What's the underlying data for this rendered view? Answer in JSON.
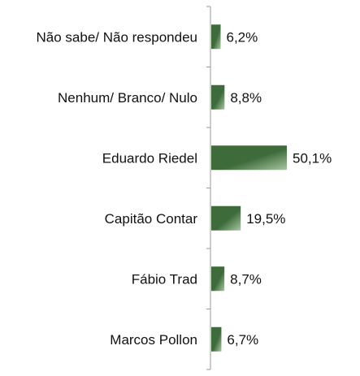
{
  "chart_data": {
    "type": "bar",
    "orientation": "horizontal",
    "categories": [
      "Não sabe/ Não respondeu",
      "Nenhum/ Branco/ Nulo",
      "Eduardo Riedel",
      "Capitão Contar",
      "Fábio Trad",
      "Marcos Pollon"
    ],
    "values": [
      6.2,
      8.8,
      50.1,
      19.5,
      8.7,
      6.7
    ],
    "value_labels": [
      "6,2%",
      "8,8%",
      "50,1%",
      "19,5%",
      "8,7%",
      "6,7%"
    ],
    "title": "",
    "xlabel": "",
    "ylabel": "",
    "xlim": [
      0,
      60
    ],
    "grid": false,
    "legend": "none",
    "colors": {
      "bar_dark": "#3d6b3a",
      "bar_light": "#a9c6a3",
      "axis": "#999999"
    }
  }
}
